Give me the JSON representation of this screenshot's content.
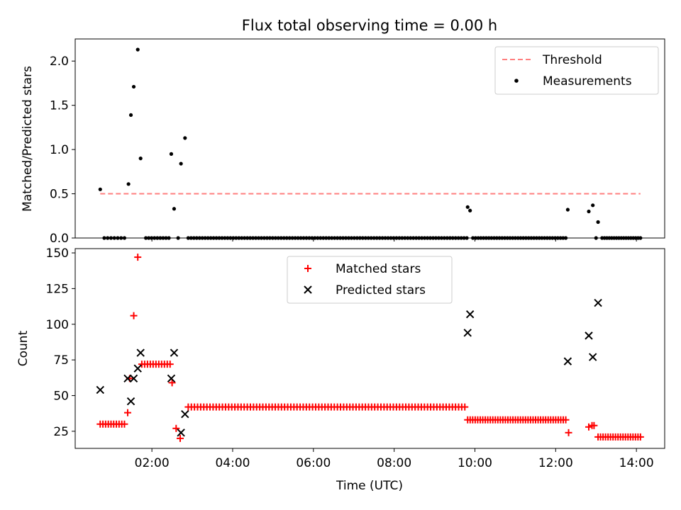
{
  "title": "Flux total observing time = 0.00 h",
  "chart_data": [
    {
      "type": "scatter",
      "ylabel": "Matched/Predicted stars",
      "ylim": [
        0,
        2.25
      ],
      "yticks": [
        0.0,
        0.5,
        1.0,
        1.5,
        2.0
      ],
      "ytick_labels": [
        "0.0",
        "0.5",
        "1.0",
        "1.5",
        "2.0"
      ],
      "xlim": [
        0.1,
        14.7
      ],
      "xticks": [
        2,
        4,
        6,
        8,
        10,
        12,
        14
      ],
      "legend_position": "top-right",
      "threshold": {
        "name": "Threshold",
        "value": 0.5,
        "x": [
          0.72,
          14.1
        ],
        "color": "#ff7f7f"
      },
      "series": [
        {
          "name": "Measurements",
          "color": "#000000",
          "points": [
            [
              0.72,
              0.55
            ],
            [
              1.42,
              0.61
            ],
            [
              1.48,
              1.39
            ],
            [
              1.55,
              1.71
            ],
            [
              1.65,
              2.13
            ],
            [
              1.72,
              0.9
            ],
            [
              2.48,
              0.95
            ],
            [
              2.55,
              0.33
            ],
            [
              2.72,
              0.84
            ],
            [
              2.82,
              1.13
            ],
            [
              9.82,
              0.35
            ],
            [
              9.88,
              0.31
            ],
            [
              12.3,
              0.32
            ],
            [
              12.82,
              0.3
            ],
            [
              12.92,
              0.37
            ],
            [
              13.05,
              0.18
            ]
          ],
          "zero_runs": [
            [
              0.82,
              1.32,
              7
            ],
            [
              1.85,
              2.42,
              9
            ],
            [
              2.65,
              2.65,
              1
            ],
            [
              2.9,
              9.8,
              100
            ],
            [
              9.95,
              12.25,
              36
            ],
            [
              13.0,
              13.0,
              1
            ],
            [
              13.15,
              14.1,
              17
            ]
          ]
        }
      ]
    },
    {
      "type": "scatter",
      "xlabel": "Time (UTC)",
      "ylabel": "Count",
      "ylim": [
        13,
        153
      ],
      "yticks": [
        25,
        50,
        75,
        100,
        125,
        150
      ],
      "ytick_labels": [
        "25",
        "50",
        "75",
        "100",
        "125",
        "150"
      ],
      "xlim": [
        0.1,
        14.7
      ],
      "xticks": [
        2,
        4,
        6,
        8,
        10,
        12,
        14
      ],
      "xtick_labels": [
        "02:00",
        "04:00",
        "06:00",
        "08:00",
        "10:00",
        "12:00",
        "14:00"
      ],
      "legend_position": "upper-center",
      "series": [
        {
          "name": "Matched stars",
          "marker": "plus",
          "color": "#ff0000",
          "points": [
            [
              1.4,
              38
            ],
            [
              1.45,
              62
            ],
            [
              1.55,
              106
            ],
            [
              1.65,
              147
            ],
            [
              2.5,
              59
            ],
            [
              2.6,
              27
            ],
            [
              2.7,
              20
            ],
            [
              12.32,
              24
            ],
            [
              12.82,
              28
            ],
            [
              12.9,
              29
            ],
            [
              12.95,
              29
            ]
          ],
          "runs": [
            [
              0.72,
              1.32,
              30,
              10
            ],
            [
              1.75,
              2.45,
              72,
              11
            ],
            [
              2.9,
              9.75,
              42,
              90
            ],
            [
              9.82,
              12.25,
              33,
              40
            ],
            [
              13.05,
              14.1,
              21,
              18
            ]
          ]
        },
        {
          "name": "Predicted stars",
          "marker": "x",
          "color": "#000000",
          "points": [
            [
              0.72,
              54
            ],
            [
              1.4,
              62
            ],
            [
              1.48,
              46
            ],
            [
              1.55,
              62
            ],
            [
              1.65,
              69
            ],
            [
              1.72,
              80
            ],
            [
              2.48,
              62
            ],
            [
              2.55,
              80
            ],
            [
              2.72,
              24
            ],
            [
              2.82,
              37
            ],
            [
              9.82,
              94
            ],
            [
              9.88,
              107
            ],
            [
              12.3,
              74
            ],
            [
              12.82,
              92
            ],
            [
              12.92,
              77
            ],
            [
              13.05,
              115
            ]
          ]
        }
      ]
    }
  ]
}
